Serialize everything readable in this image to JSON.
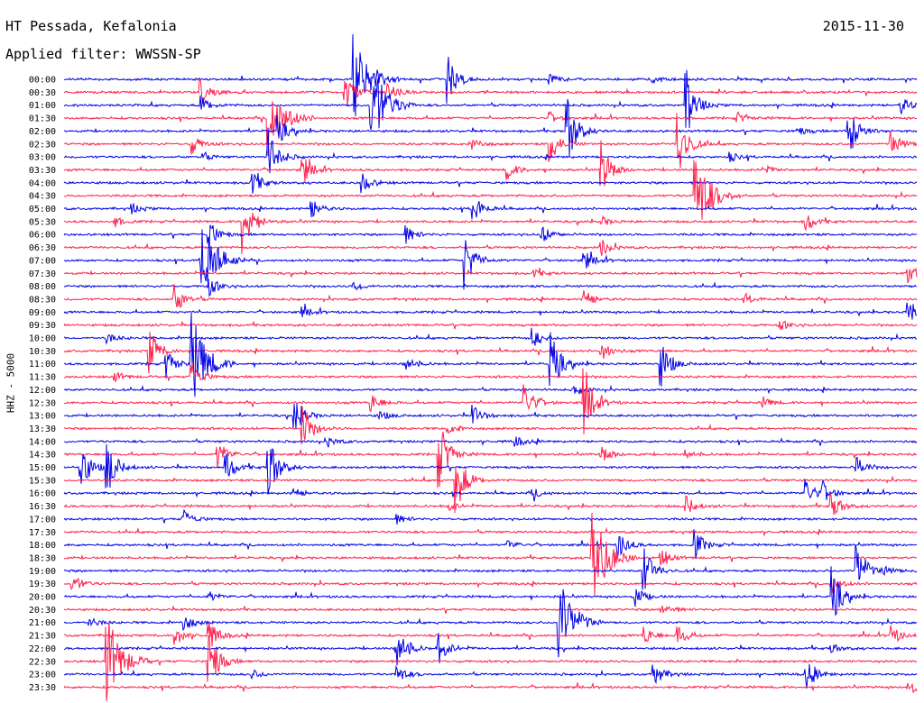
{
  "header": {
    "station": "HT Pessada, Kefalonia",
    "date": "2015-11-30",
    "filter": "Applied filter: WWSSN-SP"
  },
  "chart_data": {
    "type": "helicorder",
    "ylabel": "HHZ - 5000",
    "colors": [
      "#0000e6",
      "#ff1f4a"
    ],
    "rows": [
      {
        "label": "00:00",
        "events": [
          [
            0.34,
            1.0
          ],
          [
            0.45,
            0.5
          ],
          [
            0.57,
            0.1
          ],
          [
            0.69,
            0.1
          ]
        ]
      },
      {
        "label": "00:30",
        "events": [
          [
            0.16,
            0.3
          ],
          [
            0.33,
            0.4
          ],
          [
            0.38,
            0.2
          ]
        ]
      },
      {
        "label": "01:00",
        "events": [
          [
            0.16,
            0.2
          ],
          [
            0.36,
            1.0
          ],
          [
            0.73,
            0.7
          ],
          [
            0.98,
            0.2
          ]
        ]
      },
      {
        "label": "01:30",
        "events": [
          [
            0.24,
            0.9
          ],
          [
            0.57,
            0.1
          ],
          [
            0.79,
            0.1
          ]
        ]
      },
      {
        "label": "02:00",
        "events": [
          [
            0.25,
            0.3
          ],
          [
            0.59,
            0.8
          ],
          [
            0.86,
            0.1
          ],
          [
            0.92,
            0.6
          ]
        ]
      },
      {
        "label": "02:30",
        "events": [
          [
            0.15,
            0.2
          ],
          [
            0.48,
            0.1
          ],
          [
            0.57,
            0.4
          ],
          [
            0.72,
            0.8
          ],
          [
            0.97,
            0.3
          ]
        ]
      },
      {
        "label": "03:00",
        "events": [
          [
            0.16,
            0.1
          ],
          [
            0.24,
            0.6
          ],
          [
            0.78,
            0.1
          ]
        ]
      },
      {
        "label": "03:30",
        "events": [
          [
            0.28,
            0.3
          ],
          [
            0.52,
            0.2
          ],
          [
            0.63,
            0.6
          ],
          [
            0.82,
            0.1
          ]
        ]
      },
      {
        "label": "04:00",
        "events": [
          [
            0.22,
            0.3
          ],
          [
            0.35,
            0.2
          ]
        ]
      },
      {
        "label": "04:30",
        "events": [
          [
            0.74,
            1.0
          ]
        ]
      },
      {
        "label": "05:00",
        "events": [
          [
            0.08,
            0.1
          ],
          [
            0.29,
            0.2
          ],
          [
            0.48,
            0.3
          ]
        ]
      },
      {
        "label": "05:30",
        "events": [
          [
            0.06,
            0.1
          ],
          [
            0.21,
            0.7
          ],
          [
            0.63,
            0.1
          ],
          [
            0.87,
            0.2
          ]
        ]
      },
      {
        "label": "06:00",
        "events": [
          [
            0.17,
            0.3
          ],
          [
            0.4,
            0.2
          ],
          [
            0.56,
            0.2
          ]
        ]
      },
      {
        "label": "06:30",
        "events": [
          [
            0.63,
            0.2
          ]
        ]
      },
      {
        "label": "07:00",
        "events": [
          [
            0.16,
            1.0
          ],
          [
            0.47,
            0.6
          ],
          [
            0.61,
            0.2
          ]
        ]
      },
      {
        "label": "07:30",
        "events": [
          [
            0.55,
            0.1
          ],
          [
            0.99,
            0.2
          ]
        ]
      },
      {
        "label": "08:00",
        "events": [
          [
            0.17,
            0.2
          ],
          [
            0.34,
            0.1
          ]
        ]
      },
      {
        "label": "08:30",
        "events": [
          [
            0.13,
            0.3
          ],
          [
            0.61,
            0.2
          ],
          [
            0.8,
            0.1
          ]
        ]
      },
      {
        "label": "09:00",
        "events": [
          [
            0.28,
            0.1
          ],
          [
            0.99,
            0.3
          ]
        ]
      },
      {
        "label": "09:30",
        "events": [
          [
            0.84,
            0.1
          ]
        ]
      },
      {
        "label": "10:00",
        "events": [
          [
            0.05,
            0.1
          ],
          [
            0.55,
            0.2
          ]
        ]
      },
      {
        "label": "10:30",
        "events": [
          [
            0.1,
            0.5
          ],
          [
            0.63,
            0.2
          ]
        ]
      },
      {
        "label": "11:00",
        "events": [
          [
            0.12,
            0.3
          ],
          [
            0.15,
            1.0
          ],
          [
            0.4,
            0.2
          ],
          [
            0.57,
            0.7
          ],
          [
            0.7,
            0.5
          ]
        ]
      },
      {
        "label": "11:30",
        "events": [
          [
            0.06,
            0.1
          ],
          [
            0.15,
            0.3
          ]
        ]
      },
      {
        "label": "12:00",
        "events": [
          [
            0.6,
            0.1
          ]
        ]
      },
      {
        "label": "12:30",
        "events": [
          [
            0.36,
            0.2
          ],
          [
            0.54,
            0.4
          ],
          [
            0.61,
            0.7
          ],
          [
            0.82,
            0.1
          ]
        ]
      },
      {
        "label": "13:00",
        "events": [
          [
            0.27,
            0.4
          ],
          [
            0.37,
            0.1
          ],
          [
            0.48,
            0.2
          ]
        ]
      },
      {
        "label": "13:30",
        "events": [
          [
            0.28,
            0.5
          ],
          [
            0.45,
            0.1
          ]
        ]
      },
      {
        "label": "14:00",
        "events": [
          [
            0.31,
            0.1
          ],
          [
            0.53,
            0.1
          ]
        ]
      },
      {
        "label": "14:30",
        "events": [
          [
            0.18,
            0.3
          ],
          [
            0.44,
            0.7
          ],
          [
            0.63,
            0.2
          ],
          [
            0.73,
            0.1
          ]
        ]
      },
      {
        "label": "15:00",
        "events": [
          [
            0.02,
            0.5
          ],
          [
            0.05,
            0.6
          ],
          [
            0.19,
            0.3
          ],
          [
            0.24,
            0.7
          ],
          [
            0.93,
            0.2
          ]
        ]
      },
      {
        "label": "15:30",
        "events": [
          [
            0.46,
            0.7
          ]
        ]
      },
      {
        "label": "16:00",
        "events": [
          [
            0.27,
            0.1
          ],
          [
            0.55,
            0.1
          ],
          [
            0.87,
            0.3
          ],
          [
            0.89,
            0.2
          ]
        ]
      },
      {
        "label": "16:30",
        "events": [
          [
            0.45,
            0.1
          ],
          [
            0.73,
            0.2
          ],
          [
            0.9,
            0.3
          ]
        ]
      },
      {
        "label": "17:00",
        "events": [
          [
            0.14,
            0.2
          ],
          [
            0.39,
            0.1
          ]
        ]
      },
      {
        "label": "17:30",
        "events": []
      },
      {
        "label": "18:00",
        "events": [
          [
            0.52,
            0.1
          ],
          [
            0.65,
            0.3
          ],
          [
            0.74,
            0.3
          ]
        ]
      },
      {
        "label": "18:30",
        "events": [
          [
            0.62,
            1.0
          ],
          [
            0.7,
            0.2
          ]
        ]
      },
      {
        "label": "19:00",
        "events": [
          [
            0.68,
            0.5
          ],
          [
            0.93,
            0.6
          ],
          [
            0.96,
            0.1
          ]
        ]
      },
      {
        "label": "19:30",
        "events": [
          [
            0.01,
            0.2
          ],
          [
            0.9,
            0.2
          ]
        ]
      },
      {
        "label": "20:00",
        "events": [
          [
            0.17,
            0.1
          ],
          [
            0.67,
            0.2
          ],
          [
            0.9,
            0.6
          ]
        ]
      },
      {
        "label": "20:30",
        "events": [
          [
            0.7,
            0.2
          ]
        ]
      },
      {
        "label": "21:00",
        "events": [
          [
            0.03,
            0.1
          ],
          [
            0.14,
            0.2
          ],
          [
            0.58,
            1.0
          ]
        ]
      },
      {
        "label": "21:30",
        "events": [
          [
            0.13,
            0.2
          ],
          [
            0.17,
            0.3
          ],
          [
            0.68,
            0.2
          ],
          [
            0.72,
            0.2
          ],
          [
            0.97,
            0.2
          ]
        ]
      },
      {
        "label": "22:00",
        "events": [
          [
            0.39,
            0.6
          ],
          [
            0.44,
            0.3
          ],
          [
            0.9,
            0.1
          ]
        ]
      },
      {
        "label": "22:30",
        "events": [
          [
            0.05,
            1.0
          ],
          [
            0.17,
            0.7
          ]
        ]
      },
      {
        "label": "23:00",
        "events": [
          [
            0.22,
            0.1
          ],
          [
            0.39,
            0.2
          ],
          [
            0.69,
            0.3
          ],
          [
            0.87,
            0.3
          ]
        ]
      },
      {
        "label": "23:30",
        "events": [
          [
            0.99,
            0.2
          ]
        ]
      }
    ]
  }
}
